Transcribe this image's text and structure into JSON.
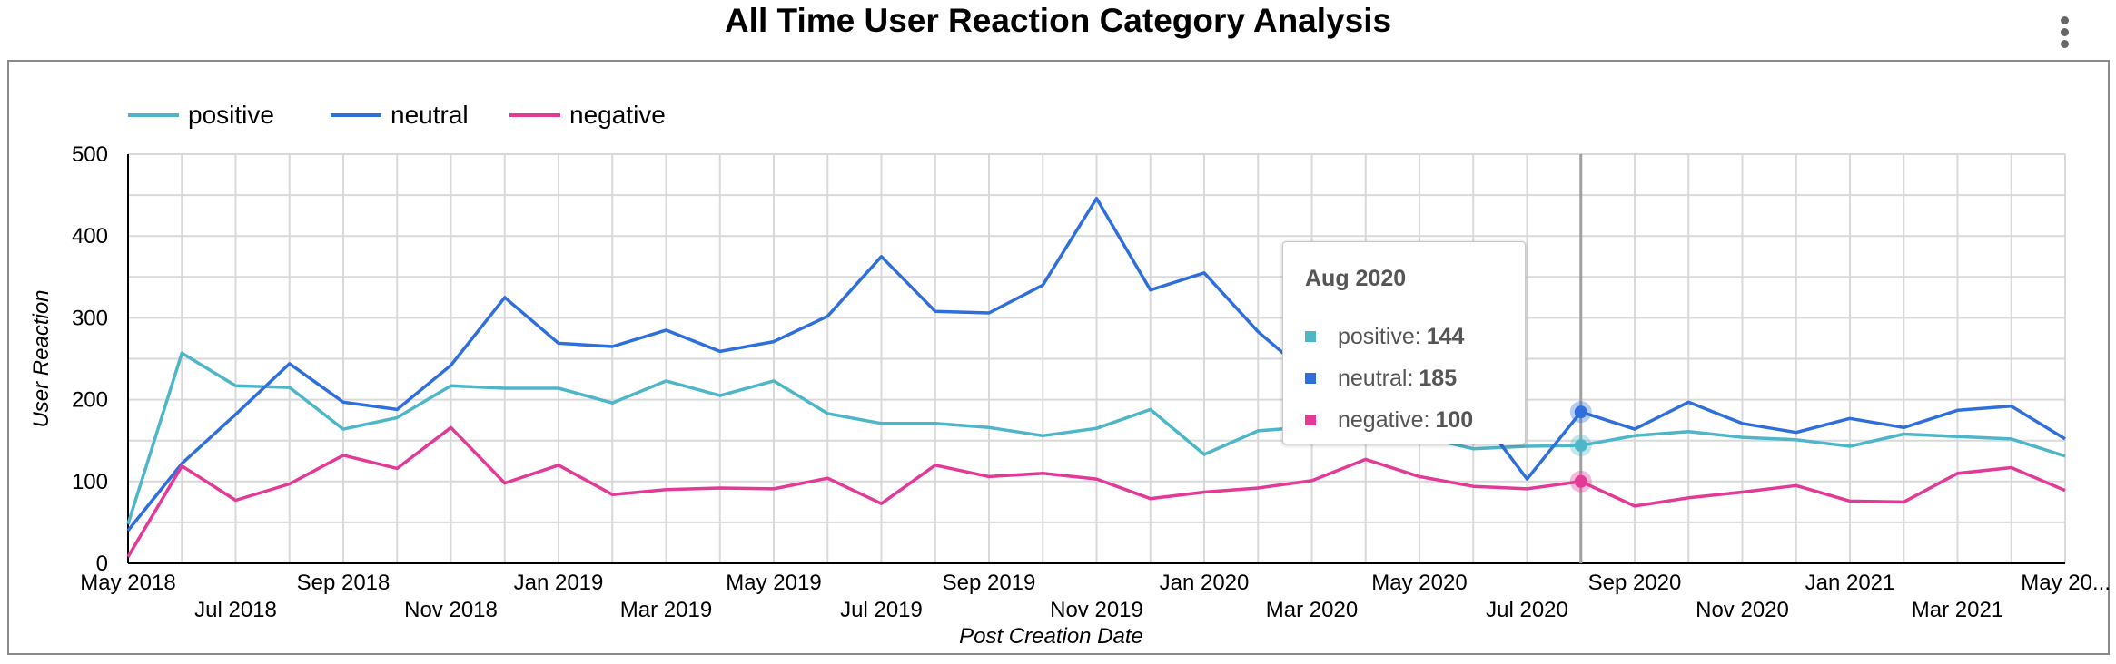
{
  "header": {
    "title": "All Time User Reaction Category  Analysis",
    "menu_icon": "more-vert-icon"
  },
  "chart_data": {
    "type": "line",
    "title": "All Time User Reaction Category  Analysis",
    "xlabel": "Post Creation Date",
    "ylabel": "User Reaction",
    "ylim": [
      0,
      500
    ],
    "yticks": [
      "0",
      "100",
      "200",
      "300",
      "400",
      "500"
    ],
    "grid": true,
    "legend_position": "top-left",
    "x": [
      "May 2018",
      "Jun 2018",
      "Jul 2018",
      "Aug 2018",
      "Sep 2018",
      "Oct 2018",
      "Nov 2018",
      "Dec 2018",
      "Jan 2019",
      "Feb 2019",
      "Mar 2019",
      "Apr 2019",
      "May 2019",
      "Jun 2019",
      "Jul 2019",
      "Aug 2019",
      "Sep 2019",
      "Oct 2019",
      "Nov 2019",
      "Dec 2019",
      "Jan 2020",
      "Feb 2020",
      "Mar 2020",
      "Apr 2020",
      "May 2020",
      "Jun 2020",
      "Jul 2020",
      "Aug 2020",
      "Sep 2020",
      "Oct 2020",
      "Nov 2020",
      "Dec 2020",
      "Jan 2021",
      "Feb 2021",
      "Mar 2021",
      "Apr 2021",
      "May 2021"
    ],
    "xtick_labels": [
      "May 2018",
      "Jul 2018",
      "Sep 2018",
      "Nov 2018",
      "Jan 2019",
      "Mar 2019",
      "May 2019",
      "Jul 2019",
      "Sep 2019",
      "Nov 2019",
      "Jan 2020",
      "Mar 2020",
      "May 2020",
      "Jul 2020",
      "Sep 2020",
      "Nov 2020",
      "Jan 2021",
      "Mar 2021",
      "May 20..."
    ],
    "series": [
      {
        "name": "positive",
        "color": "#4db6c8",
        "values": [
          48,
          257,
          217,
          215,
          164,
          178,
          217,
          214,
          214,
          196,
          223,
          205,
          223,
          183,
          171,
          171,
          166,
          156,
          165,
          188,
          133,
          162,
          167,
          175,
          155,
          140,
          143,
          144,
          156,
          161,
          154,
          151,
          143,
          158,
          155,
          152,
          131
        ]
      },
      {
        "name": "neutral",
        "color": "#2f6fdc",
        "values": [
          40,
          122,
          182,
          244,
          197,
          188,
          242,
          325,
          269,
          265,
          285,
          259,
          271,
          302,
          375,
          308,
          306,
          340,
          446,
          334,
          355,
          283,
          227,
          230,
          220,
          190,
          103,
          185,
          164,
          197,
          171,
          160,
          177,
          166,
          187,
          192,
          152
        ]
      },
      {
        "name": "negative",
        "color": "#e23a96",
        "values": [
          8,
          119,
          77,
          97,
          132,
          116,
          166,
          98,
          120,
          84,
          90,
          92,
          91,
          104,
          73,
          120,
          106,
          110,
          103,
          79,
          87,
          92,
          101,
          127,
          106,
          94,
          91,
          100,
          70,
          80,
          87,
          95,
          76,
          75,
          110,
          117,
          89
        ]
      }
    ],
    "tooltip": {
      "title": "Aug 2020",
      "rows": [
        {
          "label": "positive:",
          "value": "144",
          "color": "#4db6c8"
        },
        {
          "label": "neutral:",
          "value": "185",
          "color": "#2f6fdc"
        },
        {
          "label": "negative:",
          "value": "100",
          "color": "#e23a96"
        }
      ],
      "index": 27
    }
  }
}
